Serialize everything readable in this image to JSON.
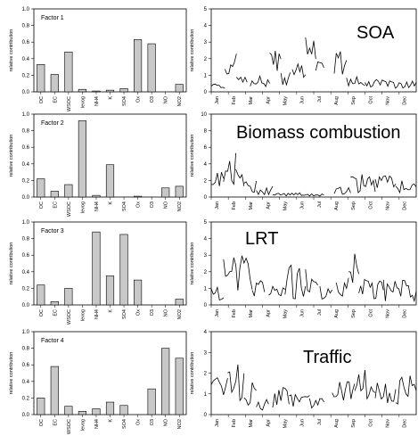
{
  "chart_data": [
    {
      "type": "bar",
      "title": "Factor 1",
      "ylabel": "relative contribution",
      "categories": [
        "OC",
        "EC",
        "WSOC",
        "levog",
        "NH4",
        "K",
        "SO4",
        "Ox",
        "O3",
        "NO",
        "NO2"
      ],
      "values": [
        0.33,
        0.21,
        0.48,
        0.03,
        0.01,
        0.02,
        0.04,
        0.63,
        0.58,
        0.0,
        0.09
      ],
      "ylim": [
        0,
        1.0
      ],
      "yticks": [
        "0.0",
        "0.2",
        "0.4",
        "0.6",
        "0.8",
        "1.0"
      ],
      "bar_color": "#c8c8c8"
    },
    {
      "type": "line",
      "title": "SOA",
      "ylabel": "relative contribution",
      "months": [
        "Jan",
        "Feb",
        "Mar",
        "Apr",
        "May",
        "Jun",
        "Jul",
        "Aug",
        "Sep",
        "Oct",
        "Nov",
        "Dec"
      ],
      "ylim": [
        0,
        5
      ],
      "yticks": [
        "0",
        "1",
        "2",
        "3",
        "4",
        "5"
      ],
      "segments": [
        [
          0.0,
          6.7,
          0.2,
          0.45,
          1
        ],
        [
          6.7,
          12.3,
          0.85,
          2.2,
          2
        ],
        [
          12.3,
          17.5,
          0.4,
          0.9,
          3
        ],
        [
          19.0,
          28.5,
          0.3,
          0.9,
          4
        ],
        [
          28.5,
          34.0,
          1.1,
          2.5,
          5
        ],
        [
          34.0,
          38.5,
          0.4,
          1.4,
          6
        ],
        [
          39.5,
          46.0,
          0.8,
          1.8,
          7
        ],
        [
          46.0,
          51.0,
          1.6,
          3.3,
          8
        ],
        [
          51.0,
          55.0,
          1.0,
          2.2,
          9
        ],
        [
          60.0,
          66.0,
          1.0,
          2.5,
          10
        ],
        [
          66.0,
          75.0,
          0.3,
          0.9,
          11
        ],
        [
          75.0,
          88.0,
          0.2,
          0.7,
          12
        ],
        [
          88.0,
          100.0,
          0.2,
          0.6,
          13
        ]
      ]
    },
    {
      "type": "bar",
      "title": "Factor 2",
      "ylabel": "relative contribution",
      "categories": [
        "OC",
        "EC",
        "WSOC",
        "levog",
        "NH4",
        "K",
        "SO4",
        "Ox",
        "O3",
        "NO",
        "NO2"
      ],
      "values": [
        0.22,
        0.07,
        0.15,
        0.92,
        0.02,
        0.39,
        0.0,
        0.01,
        0.0,
        0.11,
        0.13
      ],
      "ylim": [
        0,
        1.0
      ],
      "yticks": [
        "0.0",
        "0.2",
        "0.4",
        "0.6",
        "0.8",
        "1.0"
      ],
      "bar_color": "#c8c8c8"
    },
    {
      "type": "line",
      "title": "Biomass combustion",
      "ylabel": "relative contribution",
      "months": [
        "Jan",
        "Feb",
        "Mar",
        "Apr",
        "May",
        "Jun",
        "Jul",
        "Aug",
        "Sep",
        "Oct",
        "Nov",
        "Dec"
      ],
      "ylim": [
        0,
        10
      ],
      "yticks": [
        "0",
        "2",
        "4",
        "6",
        "8",
        "10"
      ],
      "segments": [
        [
          0.0,
          6.0,
          1.0,
          3.0,
          21
        ],
        [
          6.0,
          12.0,
          1.5,
          5.0,
          22
        ],
        [
          12.0,
          16.0,
          1.0,
          3.5,
          23
        ],
        [
          16.0,
          22.0,
          0.5,
          2.0,
          24
        ],
        [
          22.0,
          30.0,
          0.2,
          1.2,
          25
        ],
        [
          30.0,
          45.0,
          0.1,
          0.5,
          26
        ],
        [
          45.0,
          55.0,
          0.1,
          0.4,
          27
        ],
        [
          60.0,
          68.0,
          0.3,
          1.2,
          28
        ],
        [
          68.0,
          80.0,
          0.5,
          2.5,
          29
        ],
        [
          80.0,
          90.0,
          0.8,
          2.5,
          30
        ],
        [
          90.0,
          100.0,
          0.5,
          1.8,
          31
        ]
      ]
    },
    {
      "type": "bar",
      "title": "Factor 3",
      "ylabel": "relative contribution",
      "categories": [
        "OC",
        "EC",
        "WSOC",
        "levog",
        "NH4",
        "K",
        "SO4",
        "Ox",
        "O3",
        "NO",
        "NO2"
      ],
      "values": [
        0.24,
        0.04,
        0.2,
        0.0,
        0.88,
        0.35,
        0.85,
        0.3,
        0.0,
        0.0,
        0.07
      ],
      "ylim": [
        0,
        1.0
      ],
      "yticks": [
        "0.0",
        "0.2",
        "0.4",
        "0.6",
        "0.8",
        "1.0"
      ],
      "bar_color": "#c8c8c8"
    },
    {
      "type": "line",
      "title": "LRT",
      "ylabel": "relative contribution",
      "months": [
        "Jan",
        "Feb",
        "Mar",
        "Apr",
        "May",
        "Jun",
        "Jul",
        "Aug",
        "Sep",
        "Oct",
        "Nov",
        "Dec"
      ],
      "ylim": [
        0,
        5
      ],
      "yticks": [
        "0",
        "1",
        "2",
        "3",
        "4",
        "5"
      ],
      "segments": [
        [
          0.0,
          6.0,
          0.2,
          1.0,
          41
        ],
        [
          6.0,
          14.0,
          0.6,
          2.6,
          42
        ],
        [
          14.0,
          20.0,
          0.8,
          3.0,
          43
        ],
        [
          20.0,
          26.0,
          0.3,
          1.5,
          44
        ],
        [
          28.0,
          36.0,
          0.3,
          1.2,
          45
        ],
        [
          36.0,
          46.0,
          0.3,
          2.3,
          46
        ],
        [
          46.0,
          52.0,
          0.4,
          2.0,
          47
        ],
        [
          53.0,
          59.0,
          0.3,
          1.3,
          48
        ],
        [
          61.0,
          67.0,
          0.4,
          1.8,
          49
        ],
        [
          67.0,
          72.0,
          0.8,
          3.2,
          50
        ],
        [
          72.0,
          84.0,
          0.3,
          1.5,
          51
        ],
        [
          84.0,
          100.0,
          0.2,
          1.4,
          52
        ]
      ]
    },
    {
      "type": "bar",
      "title": "Factor 4",
      "ylabel": "relative contribution",
      "categories": [
        "OC",
        "EC",
        "WSOC",
        "levog",
        "NH4",
        "K",
        "SO4",
        "Ox",
        "O3",
        "NO",
        "NO2"
      ],
      "values": [
        0.2,
        0.58,
        0.1,
        0.04,
        0.07,
        0.15,
        0.11,
        0.0,
        0.31,
        0.8,
        0.68
      ],
      "ylim": [
        0,
        1.0
      ],
      "yticks": [
        "0.0",
        "0.2",
        "0.4",
        "0.6",
        "0.8",
        "1.0"
      ],
      "bar_color": "#c8c8c8"
    },
    {
      "type": "line",
      "title": "Traffic",
      "ylabel": "relative contribution",
      "months": [
        "Jan",
        "Feb",
        "Mar",
        "Apr",
        "May",
        "Jun",
        "Jul",
        "Aug",
        "Sep",
        "Oct",
        "Nov",
        "Dec"
      ],
      "ylim": [
        0,
        4
      ],
      "yticks": [
        "0",
        "1",
        "2",
        "3",
        "4"
      ],
      "segments": [
        [
          0.0,
          8.0,
          0.6,
          1.8,
          61
        ],
        [
          8.0,
          16.0,
          0.6,
          2.2,
          62
        ],
        [
          16.0,
          22.0,
          0.4,
          1.5,
          63
        ],
        [
          22.0,
          28.0,
          0.2,
          1.0,
          64
        ],
        [
          30.0,
          38.0,
          0.3,
          1.3,
          65
        ],
        [
          38.0,
          48.0,
          0.2,
          1.0,
          66
        ],
        [
          48.0,
          55.0,
          0.2,
          1.0,
          67
        ],
        [
          59.0,
          70.0,
          0.5,
          1.5,
          68
        ],
        [
          70.0,
          80.0,
          0.6,
          2.0,
          69
        ],
        [
          80.0,
          90.0,
          0.5,
          1.8,
          70
        ],
        [
          90.0,
          100.0,
          0.5,
          1.8,
          71
        ]
      ]
    }
  ]
}
